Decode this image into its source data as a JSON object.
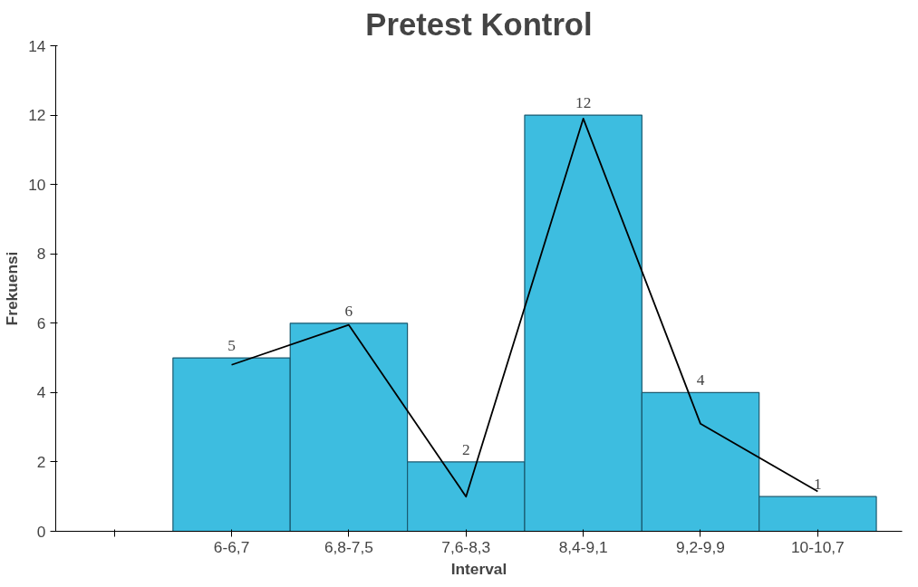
{
  "chart_data": {
    "type": "bar",
    "title": "Pretest Kontrol",
    "xlabel": "Interval",
    "ylabel": "Frekuensi",
    "categories": [
      null,
      "6-6,7",
      "6,8-7,5",
      "7,6-8,3",
      "8,4-9,1",
      "9,2-9,9",
      "10-10,7"
    ],
    "series": [
      {
        "color": "#3dbde0",
        "values": [
          null,
          5,
          6,
          2,
          12,
          4,
          1
        ],
        "value_labels": [
          null,
          "5",
          "6",
          "2",
          "12",
          "4",
          "1"
        ]
      },
      {
        "type": "line",
        "color": "#000000",
        "values": [
          null,
          4.8,
          5.95,
          1.0,
          11.9,
          3.1,
          1.15
        ]
      }
    ],
    "ylim": [
      0,
      14
    ],
    "yticks": [
      0,
      2,
      4,
      6,
      8,
      10,
      12,
      14
    ],
    "grid": false
  }
}
